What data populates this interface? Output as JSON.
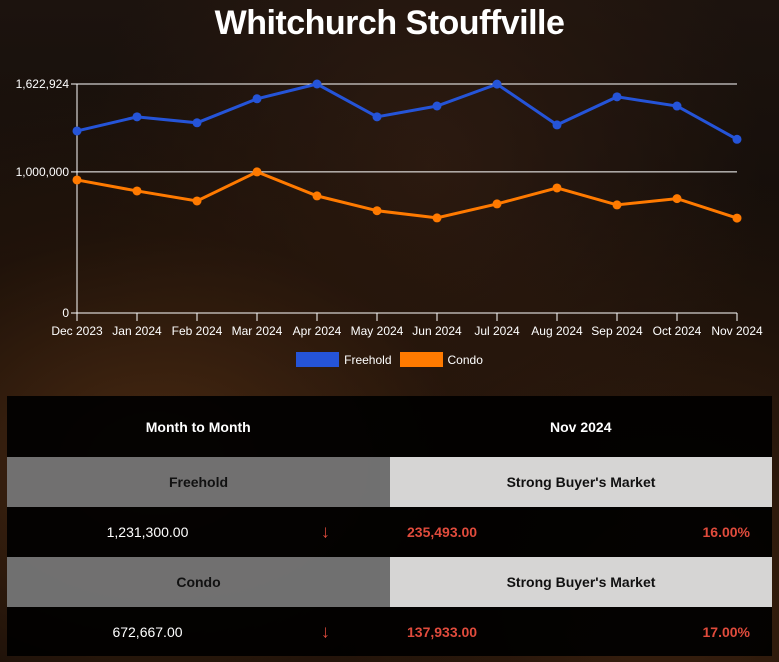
{
  "title": "Whitchurch Stouffville",
  "chart_data": {
    "type": "line",
    "title": "Whitchurch Stouffville",
    "xlabel": "",
    "ylabel": "",
    "categories": [
      "Dec 2023",
      "Jan 2024",
      "Feb 2024",
      "Mar 2024",
      "Apr 2024",
      "May 2024",
      "Jun 2024",
      "Jul 2024",
      "Aug 2024",
      "Sep 2024",
      "Oct 2024",
      "Nov 2024"
    ],
    "series": [
      {
        "name": "Freehold",
        "color": "#2554d8",
        "values": [
          1290000,
          1390000,
          1348000,
          1518000,
          1622924,
          1390000,
          1467000,
          1622000,
          1333000,
          1532000,
          1466793,
          1231300
        ]
      },
      {
        "name": "Condo",
        "color": "#ff7a00",
        "values": [
          943000,
          865000,
          794000,
          1000000,
          830000,
          725000,
          674000,
          773000,
          886000,
          766000,
          810600,
          672667
        ]
      }
    ],
    "yticks": [
      0,
      1000000,
      1622924
    ],
    "ytick_labels": [
      "0",
      "1,000,000",
      "1,622,924"
    ],
    "ylim": [
      0,
      1622924
    ],
    "grid": true,
    "legend_position": "bottom"
  },
  "legend": [
    {
      "label": "Freehold",
      "color": "#2554d8"
    },
    {
      "label": "Condo",
      "color": "#ff7a00"
    }
  ],
  "table": {
    "header_left": "Month to Month",
    "header_right": "Nov 2024",
    "rows": [
      {
        "type": "Freehold",
        "market": "Strong Buyer's Market",
        "price": "1,231,300.00",
        "trend_icon": "arrow-down",
        "arrow": "↓",
        "change": "235,493.00",
        "percent": "16.00%"
      },
      {
        "type": "Condo",
        "market": "Strong Buyer's Market",
        "price": "672,667.00",
        "trend_icon": "arrow-down",
        "arrow": "↓",
        "change": "137,933.00",
        "percent": "17.00%"
      }
    ]
  }
}
